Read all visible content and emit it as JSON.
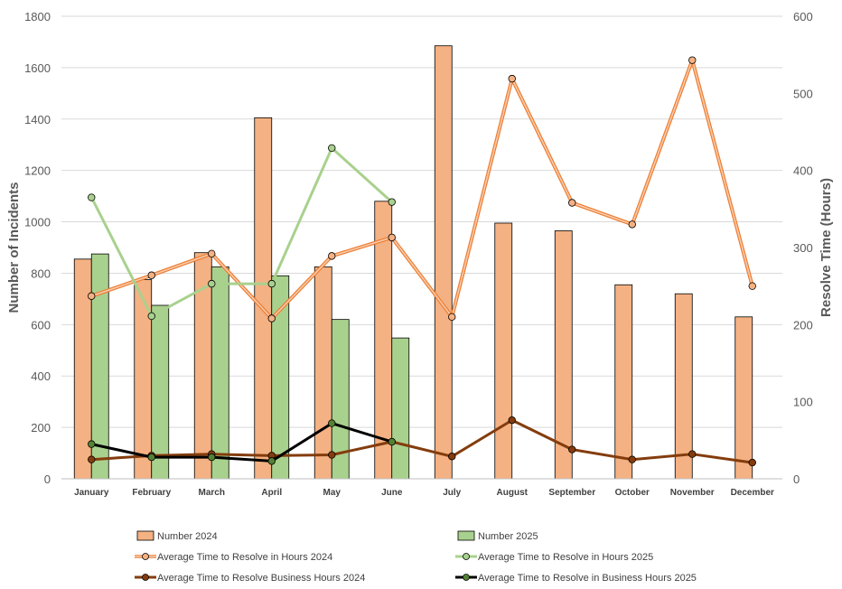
{
  "chart_data": {
    "type": "bar",
    "categories": [
      "January",
      "February",
      "March",
      "April",
      "May",
      "June",
      "July",
      "August",
      "September",
      "October",
      "November",
      "December"
    ],
    "ylabel": "Number of Incidents",
    "y2label": "Resolve Time (Hours)",
    "ylim": [
      0,
      1800
    ],
    "y2lim": [
      0,
      600
    ],
    "yticks": [
      0,
      200,
      400,
      600,
      800,
      1000,
      1200,
      1400,
      1600,
      1800
    ],
    "y2ticks": [
      0,
      100,
      200,
      300,
      400,
      500,
      600
    ],
    "grid": true,
    "legend_position": "bottom",
    "series": [
      {
        "name": "Number 2024",
        "kind": "bar",
        "axis": "left",
        "color": "#f4b183",
        "values": [
          855,
          775,
          880,
          1405,
          825,
          1080,
          1685,
          995,
          965,
          755,
          720,
          630
        ]
      },
      {
        "name": "Number 2025",
        "kind": "bar",
        "axis": "left",
        "color": "#a9d18e",
        "values": [
          875,
          675,
          825,
          790,
          620,
          548,
          null,
          null,
          null,
          null,
          null,
          null
        ]
      },
      {
        "name": "Average Time to Resolve in Hours 2024",
        "kind": "line",
        "axis": "right",
        "color": "#ed7d31",
        "marker": "#f4b183",
        "values": [
          237,
          264,
          292,
          208,
          289,
          313,
          210,
          519,
          358,
          330,
          543,
          250
        ]
      },
      {
        "name": "Average Time to Resolve in Hours 2025",
        "kind": "line",
        "axis": "right",
        "color": "#a9d18e",
        "marker": "#a9d18e",
        "values": [
          365,
          211,
          253,
          253,
          429,
          359,
          null,
          null,
          null,
          null,
          null,
          null
        ]
      },
      {
        "name": "Average Time to Resolve Business Hours 2024",
        "kind": "line",
        "axis": "right",
        "color": "#843c0c",
        "marker": "#843c0c",
        "values": [
          25,
          30,
          32,
          30,
          31,
          48,
          29,
          76,
          38,
          25,
          32,
          21
        ]
      },
      {
        "name": "Average Time to Resolve in Business Hours 2025",
        "kind": "line",
        "axis": "right",
        "color": "#000000",
        "marker": "#548235",
        "values": [
          45,
          28,
          28,
          23,
          72,
          48,
          null,
          null,
          null,
          null,
          null,
          null
        ]
      }
    ]
  }
}
